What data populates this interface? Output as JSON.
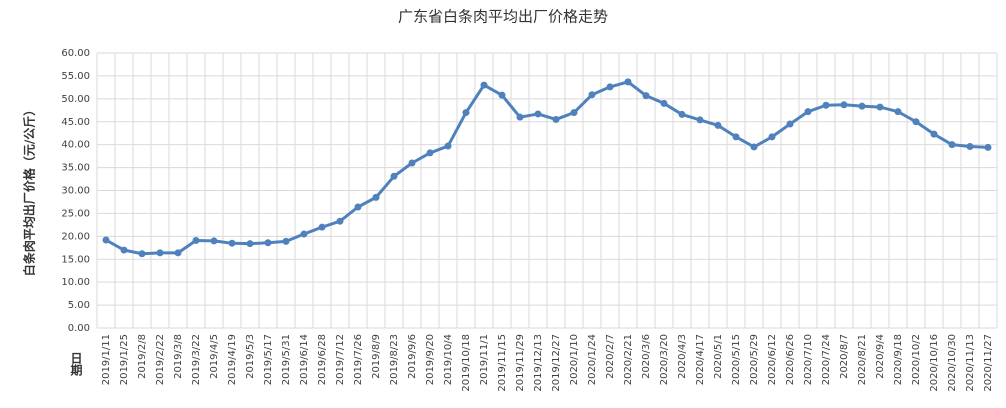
{
  "chart_data": {
    "type": "line",
    "title": "广东省白条肉平均出厂价格走势",
    "y_label": "白条肉平均出厂价格（元/公斤）",
    "x_label": "日期",
    "categories": [
      "2019/1/11",
      "2019/1/25",
      "2019/2/8",
      "2019/2/22",
      "2019/3/8",
      "2019/3/22",
      "2019/4/5",
      "2019/4/19",
      "2019/5/3",
      "2019/5/17",
      "2019/5/31",
      "2019/6/14",
      "2019/6/28",
      "2019/7/12",
      "2019/7/26",
      "2019/8/9",
      "2019/8/23",
      "2019/9/6",
      "2019/9/20",
      "2019/10/4",
      "2019/10/18",
      "2019/11/1",
      "2019/11/15",
      "2019/11/29",
      "2019/12/13",
      "2019/12/27",
      "2020/1/10",
      "2020/1/24",
      "2020/2/7",
      "2020/2/21",
      "2020/3/6",
      "2020/3/20",
      "2020/4/3",
      "2020/4/17",
      "2020/5/1",
      "2020/5/15",
      "2020/5/29",
      "2020/6/12",
      "2020/6/26",
      "2020/7/10",
      "2020/7/24",
      "2020/8/7",
      "2020/8/21",
      "2020/9/4",
      "2020/9/18",
      "2020/10/2",
      "2020/10/16",
      "2020/10/30",
      "2020/11/13",
      "2020/11/27"
    ],
    "values": [
      19.2,
      17.0,
      16.2,
      16.4,
      16.4,
      19.1,
      19.0,
      18.5,
      18.4,
      18.6,
      18.9,
      20.5,
      22.0,
      23.3,
      26.4,
      28.5,
      33.1,
      36.0,
      38.2,
      39.7,
      47.0,
      53.0,
      50.8,
      46.0,
      46.7,
      45.5,
      47.0,
      50.9,
      52.6,
      53.7,
      50.7,
      49.0,
      46.6,
      45.4,
      44.2,
      41.7,
      39.5,
      41.7,
      44.5,
      47.2,
      48.6,
      48.7,
      48.4,
      48.2,
      47.2,
      45.0,
      42.3,
      40.0,
      39.6,
      39.4
    ],
    "color": "#4f81bd",
    "ylim": [
      0,
      60
    ],
    "yticks": [
      {
        "value": 0,
        "label": "0.00"
      },
      {
        "value": 5,
        "label": "5.00"
      },
      {
        "value": 10,
        "label": "10.00"
      },
      {
        "value": 15,
        "label": "15.00"
      },
      {
        "value": 20,
        "label": "20.00"
      },
      {
        "value": 25,
        "label": "25.00"
      },
      {
        "value": 30,
        "label": "30.00"
      },
      {
        "value": 35,
        "label": "35.00"
      },
      {
        "value": 40,
        "label": "40.00"
      },
      {
        "value": 45,
        "label": "45.00"
      },
      {
        "value": 50,
        "label": "50.00"
      },
      {
        "value": 55,
        "label": "55.00"
      },
      {
        "value": 60,
        "label": "60.00"
      }
    ],
    "grid": true
  }
}
